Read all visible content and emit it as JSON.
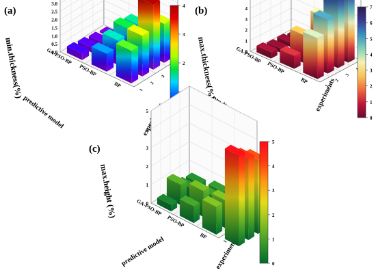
{
  "chart_data": [
    {
      "type": "bar3d",
      "panel_label": "(a)",
      "zlabel": "min.thickness(%)",
      "xlabel": "predictive model",
      "ylabel": "experiments",
      "models": [
        "BP",
        "PSO-BP",
        "GA-PSO-BP"
      ],
      "experiments": [
        "1",
        "2",
        "3",
        "4"
      ],
      "zlim": [
        0,
        4.0
      ],
      "z_ticks": [
        "0.0",
        "0.5",
        "1.0",
        "1.5",
        "2.0",
        "2.5",
        "3.0",
        "3.5",
        "4.0"
      ],
      "values": [
        [
          2.0,
          2.5,
          4.0,
          2.4
        ],
        [
          1.1,
          1.5,
          1.8,
          1.6
        ],
        [
          0.4,
          0.3,
          0.2,
          0.1
        ]
      ],
      "colorbar": {
        "colormap": "rainbow",
        "range": [
          0,
          4
        ],
        "ticks": [
          "0",
          "1",
          "2",
          "3",
          "4"
        ]
      },
      "grid": true
    },
    {
      "type": "bar3d",
      "panel_label": "(b)",
      "zlabel": "max.thickness(%)",
      "xlabel": "predictive model",
      "ylabel": "experiments",
      "models": [
        "BP",
        "PSO-BP",
        "GA-PSO-BP"
      ],
      "experiments": [
        "1",
        "2",
        "3",
        "4"
      ],
      "zlim": [
        0,
        7
      ],
      "z_ticks": [
        "0",
        "1",
        "2",
        "3",
        "4",
        "5",
        "6",
        "7"
      ],
      "values": [
        [
          3.8,
          5.0,
          6.8,
          7.2
        ],
        [
          1.2,
          2.6,
          1.0,
          3.3
        ],
        [
          0.6,
          0.4,
          0.4,
          0.2
        ]
      ],
      "colorbar": {
        "colormap": "purple-teal-yellow-red",
        "range": [
          0,
          7
        ],
        "ticks": [
          "0",
          "1",
          "2",
          "3",
          "4",
          "5",
          "6",
          "7"
        ]
      },
      "grid": true
    },
    {
      "type": "bar3d",
      "panel_label": "(c)",
      "zlabel": "max.height (%)",
      "xlabel": "predictive model",
      "ylabel": "experiments",
      "models": [
        "BP",
        "PSO-BP",
        "GA-PSO-BP"
      ],
      "experiments": [
        "1",
        "2",
        "3",
        "4"
      ],
      "zlim": [
        0,
        5
      ],
      "z_ticks": [
        "0",
        "1",
        "2",
        "3",
        "4",
        "5"
      ],
      "values": [
        [
          1.5,
          1.5,
          1.0,
          1.0
        ],
        [
          0.9,
          1.4,
          0.8,
          0.7
        ],
        [
          0.35,
          1.1,
          0.6,
          0.5
        ]
      ],
      "extra_values": [
        [
          4.9,
          4.4,
          4.0
        ]
      ],
      "colorbar": {
        "colormap": "green-yellow-red",
        "range": [
          0,
          5
        ],
        "ticks": [
          "0",
          "1",
          "2",
          "3",
          "4",
          "5"
        ]
      },
      "grid": true
    }
  ]
}
